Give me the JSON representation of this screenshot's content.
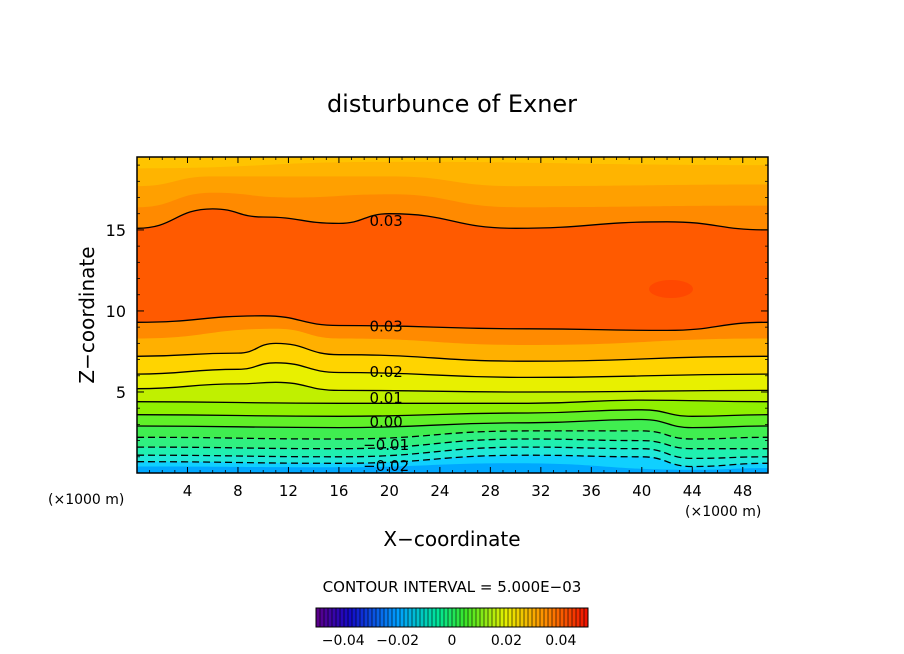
{
  "chart_data": {
    "type": "contour",
    "title": "disturbunce of Exner",
    "xlabel": "X−coordinate",
    "ylabel": "Z−coordinate",
    "x_unit_left": "(×1000 m)",
    "x_unit_right": "(×1000 m)",
    "xlim": [
      0,
      50
    ],
    "ylim": [
      0,
      19.5
    ],
    "x_ticks": [
      4,
      8,
      12,
      16,
      20,
      24,
      28,
      32,
      36,
      40,
      44,
      48
    ],
    "y_ticks": [
      5,
      10,
      15
    ],
    "contour_interval_text": "CONTOUR INTERVAL = 5.000E−03",
    "colorbar": {
      "range": [
        -0.05,
        0.05
      ],
      "ticks": [
        -0.04,
        -0.02,
        0,
        0.02,
        0.04
      ],
      "tick_labels": [
        "−0.04",
        "−0.02",
        "0",
        "0.02",
        "0.04"
      ]
    },
    "contour_labels": [
      {
        "text": "0.03",
        "x": 18,
        "z": 15.6
      },
      {
        "text": "0.03",
        "x": 18,
        "z": 9.1
      },
      {
        "text": "0.02",
        "x": 18,
        "z": 6.3
      },
      {
        "text": "0.01",
        "x": 18,
        "z": 4.7
      },
      {
        "text": "0.00",
        "x": 18,
        "z": 3.2
      },
      {
        "text": "−0.01",
        "x": 18,
        "z": 1.8
      },
      {
        "text": "−0.02",
        "x": 18,
        "z": 0.5
      }
    ],
    "levels": [
      {
        "value": -0.025,
        "color": "#00a8ff",
        "profile": [
          [
            0,
            0.4
          ],
          [
            16,
            0.35
          ],
          [
            30,
            0.6
          ],
          [
            44,
            0.2
          ],
          [
            50,
            0.3
          ]
        ],
        "dashed": false,
        "line": false
      },
      {
        "value": -0.02,
        "color": "#10d0ff",
        "profile": [
          [
            0,
            0.7
          ],
          [
            16,
            0.6
          ],
          [
            31,
            1.1
          ],
          [
            40,
            1.0
          ],
          [
            44,
            0.4
          ],
          [
            50,
            0.6
          ]
        ],
        "dashed": true,
        "line": true
      },
      {
        "value": -0.015,
        "color": "#20e8d8",
        "profile": [
          [
            0,
            1.1
          ],
          [
            16,
            1.0
          ],
          [
            31,
            1.6
          ],
          [
            40,
            1.5
          ],
          [
            44,
            0.9
          ],
          [
            50,
            1.0
          ]
        ],
        "dashed": true,
        "line": true
      },
      {
        "value": -0.01,
        "color": "#20f0b0",
        "profile": [
          [
            0,
            1.6
          ],
          [
            16,
            1.5
          ],
          [
            31,
            2.1
          ],
          [
            40,
            2.0
          ],
          [
            44,
            1.5
          ],
          [
            50,
            1.5
          ]
        ],
        "dashed": true,
        "line": true
      },
      {
        "value": -0.005,
        "color": "#30f080",
        "profile": [
          [
            0,
            2.2
          ],
          [
            16,
            2.1
          ],
          [
            31,
            2.6
          ],
          [
            40,
            2.6
          ],
          [
            44,
            2.1
          ],
          [
            50,
            2.2
          ]
        ],
        "dashed": true,
        "line": true
      },
      {
        "value": 0.0,
        "color": "#40ee50",
        "profile": [
          [
            0,
            2.9
          ],
          [
            16,
            2.8
          ],
          [
            31,
            3.1
          ],
          [
            40,
            3.3
          ],
          [
            44,
            2.8
          ],
          [
            50,
            2.9
          ]
        ],
        "dashed": false,
        "line": true
      },
      {
        "value": 0.005,
        "color": "#60f028",
        "profile": [
          [
            0,
            3.6
          ],
          [
            16,
            3.5
          ],
          [
            31,
            3.7
          ],
          [
            40,
            3.9
          ],
          [
            44,
            3.5
          ],
          [
            50,
            3.6
          ]
        ],
        "dashed": false,
        "line": true
      },
      {
        "value": 0.01,
        "color": "#90f000",
        "profile": [
          [
            0,
            4.4
          ],
          [
            16,
            4.3
          ],
          [
            31,
            4.3
          ],
          [
            40,
            4.5
          ],
          [
            50,
            4.4
          ]
        ],
        "dashed": false,
        "line": true
      },
      {
        "value": 0.015,
        "color": "#c0f000",
        "profile": [
          [
            0,
            5.2
          ],
          [
            8,
            5.5
          ],
          [
            11,
            5.6
          ],
          [
            16,
            5.1
          ],
          [
            31,
            5.0
          ],
          [
            50,
            5.1
          ]
        ],
        "dashed": false,
        "line": true
      },
      {
        "value": 0.02,
        "color": "#e8f000",
        "profile": [
          [
            0,
            6.1
          ],
          [
            8,
            6.4
          ],
          [
            11,
            6.8
          ],
          [
            16,
            6.2
          ],
          [
            31,
            5.9
          ],
          [
            50,
            6.1
          ]
        ],
        "dashed": false,
        "line": true
      },
      {
        "value": 0.025,
        "color": "#ffd400",
        "profile": [
          [
            0,
            7.2
          ],
          [
            8,
            7.4
          ],
          [
            11,
            8.0
          ],
          [
            16,
            7.3
          ],
          [
            31,
            6.9
          ],
          [
            50,
            7.2
          ]
        ],
        "dashed": false,
        "line": true
      },
      {
        "value": 0.0275,
        "color": "#ffb000",
        "profile": [
          [
            0,
            8.3
          ],
          [
            11,
            8.9
          ],
          [
            16,
            8.3
          ],
          [
            31,
            7.9
          ],
          [
            50,
            8.3
          ]
        ],
        "dashed": false,
        "line": false
      },
      {
        "value": 0.03,
        "color": "#ff8a00",
        "profile": [
          [
            0,
            9.3
          ],
          [
            10,
            9.7
          ],
          [
            16,
            9.1
          ],
          [
            31,
            8.9
          ],
          [
            42,
            8.8
          ],
          [
            50,
            9.3
          ]
        ],
        "dashed": false,
        "line": true
      },
      {
        "value": 0.035,
        "color": "#ff5a00",
        "profile": [
          [
            0,
            10.0
          ],
          [
            10,
            10.4
          ],
          [
            16,
            9.8
          ],
          [
            31,
            9.6
          ],
          [
            50,
            10.0
          ]
        ],
        "dashed": false,
        "line": false
      },
      {
        "value": 0.03,
        "color": "#ff8a00",
        "profile": [
          [
            0,
            15.1
          ],
          [
            6,
            16.3
          ],
          [
            10,
            15.8
          ],
          [
            16,
            15.4
          ],
          [
            20,
            16.0
          ],
          [
            30,
            15.1
          ],
          [
            42,
            15.5
          ],
          [
            50,
            15.0
          ]
        ],
        "dashed": false,
        "line": true
      },
      {
        "value": 0.0275,
        "color": "#ffa000",
        "profile": [
          [
            0,
            16.4
          ],
          [
            6,
            17.3
          ],
          [
            12,
            17.0
          ],
          [
            20,
            17.2
          ],
          [
            30,
            16.4
          ],
          [
            50,
            16.5
          ]
        ],
        "dashed": false,
        "line": false
      },
      {
        "value": 0.025,
        "color": "#ffb400",
        "profile": [
          [
            0,
            17.7
          ],
          [
            6,
            18.3
          ],
          [
            20,
            18.3
          ],
          [
            30,
            17.7
          ],
          [
            50,
            17.8
          ]
        ],
        "dashed": false,
        "line": false
      },
      {
        "value": 0.02,
        "color": "#ffc400",
        "profile": [
          [
            0,
            18.8
          ],
          [
            20,
            19.2
          ],
          [
            50,
            19.0
          ]
        ],
        "dashed": false,
        "line": false
      }
    ],
    "grid": false,
    "legend": "colorbar-bottom"
  }
}
